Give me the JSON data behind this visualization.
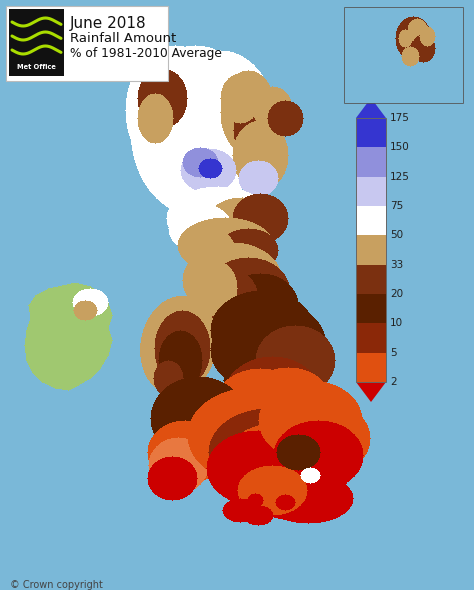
{
  "title_line1": "June 2018",
  "title_line2": "Rainfall Amount",
  "title_line3": "% of 1981-2010 Average",
  "colorbar_colors_top_to_bottom": [
    "#3535d0",
    "#9090dc",
    "#c8c8f0",
    "#ffffff",
    "#c8a060",
    "#7b3010",
    "#5a2000",
    "#8b2808",
    "#e05010",
    "#cc0000"
  ],
  "colorbar_ticks": [
    "175",
    "150",
    "125",
    "75",
    "50",
    "33",
    "20",
    "10",
    "5",
    "2"
  ],
  "sea_color": "#7ab8d8",
  "ireland_color": "#a0c870",
  "logo_bg": "#111111",
  "logo_wave_color": "#aadd00",
  "copyright_text": "© Crown copyright"
}
